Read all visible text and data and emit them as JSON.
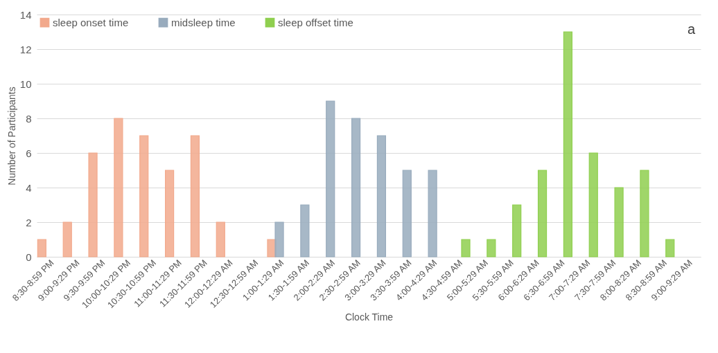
{
  "chart_data": {
    "type": "bar",
    "xlabel": "Clock Time",
    "ylabel": "Number of Participants",
    "categories": [
      "8:30-8:59 PM",
      "9:00-9:29 PM",
      "9:30-9:59 PM",
      "10:00-10:29 PM",
      "10:30-10:59 PM",
      "11:00-11:29 PM",
      "11:30-11:59 PM",
      "12:00-12:29 AM",
      "12:30-12:59 AM",
      "1:00-1:29 AM",
      "1:30-1:59 AM",
      "2:00-2:29 AM",
      "2:30-2:59 AM",
      "3:00-3:29 AM",
      "3:30-3:59 AM",
      "4:00-4:29 AM",
      "4:30-4:59 AM",
      "5:00-5:29 AM",
      "5:30-5:59 AM",
      "6:00-6:29 AM",
      "6:30-6:59 AM",
      "7:00-7:29 AM",
      "7:30-7:59 AM",
      "8:00-8:29 AM",
      "8:30-8:59 AM",
      "9:00-9:29 AM"
    ],
    "series": [
      {
        "name": "sleep onset time",
        "color": "#f2a98c",
        "values": [
          1,
          2,
          6,
          8,
          7,
          5,
          7,
          2,
          null,
          1,
          null,
          null,
          null,
          null,
          null,
          null,
          null,
          null,
          null,
          null,
          null,
          null,
          null,
          null,
          null,
          null
        ]
      },
      {
        "name": "midsleep time",
        "color": "#98abbd",
        "values": [
          null,
          null,
          null,
          null,
          null,
          null,
          null,
          null,
          null,
          2,
          3,
          9,
          8,
          7,
          5,
          5,
          null,
          null,
          null,
          null,
          null,
          null,
          null,
          null,
          null,
          null
        ]
      },
      {
        "name": "sleep offset time",
        "color": "#8fcf4f",
        "values": [
          null,
          null,
          null,
          null,
          null,
          null,
          null,
          null,
          null,
          null,
          null,
          null,
          null,
          null,
          null,
          null,
          1,
          1,
          3,
          5,
          13,
          6,
          4,
          5,
          1,
          null
        ]
      }
    ],
    "ylim": [
      0,
      14
    ],
    "yticks": [
      0,
      2,
      4,
      6,
      8,
      10,
      12,
      14
    ],
    "grid": "y",
    "legend": "top left",
    "annotations": [
      "a"
    ]
  }
}
